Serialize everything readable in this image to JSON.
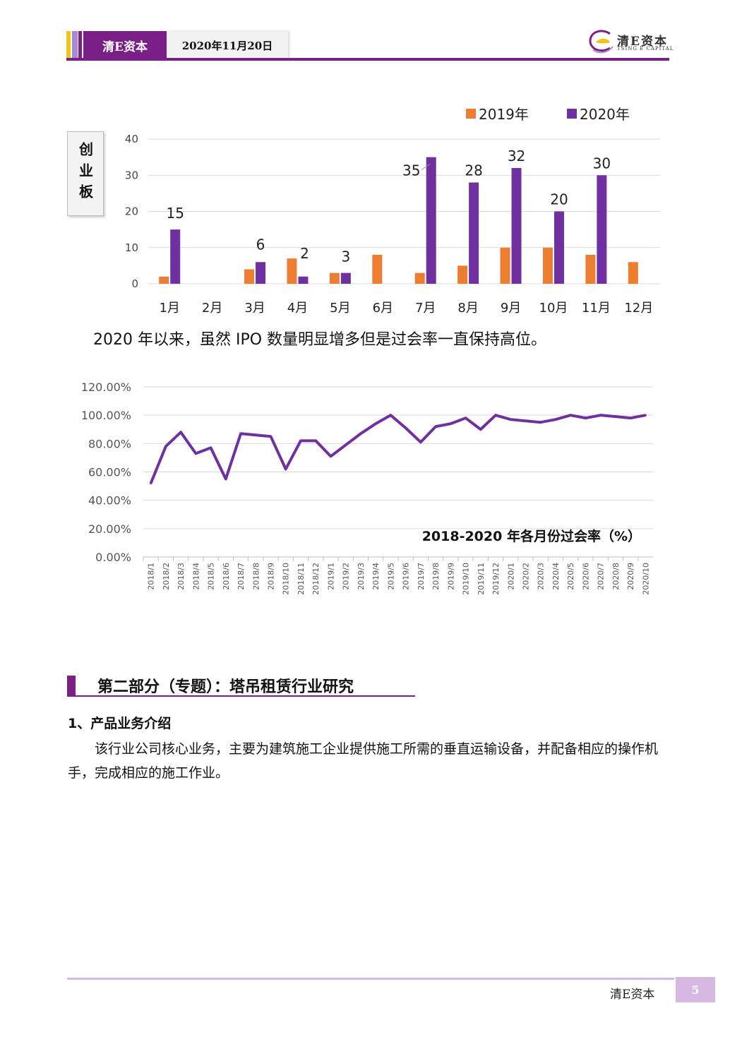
{
  "header": {
    "brand": "清E资本",
    "date": "2020年11月20日",
    "logo_text": "清E资本",
    "logo_sub": "TSING E CAPITAL",
    "colors": {
      "accent": "#7a1f86",
      "stripe_yellow": "#f0c419",
      "stripe_purple_light": "#a78bd0"
    }
  },
  "chart1_side_label": "创业板",
  "paragraph1": "2020 年以来，虽然 IPO 数量明显增多但是过会率一直保持高位。",
  "chart_data": [
    {
      "type": "bar",
      "categories": [
        "1月",
        "2月",
        "3月",
        "4月",
        "5月",
        "6月",
        "7月",
        "8月",
        "9月",
        "10月",
        "11月",
        "12月"
      ],
      "series": [
        {
          "name": "2019年",
          "color": "#ed7d31",
          "values": [
            2,
            0,
            4,
            7,
            3,
            8,
            3,
            5,
            10,
            10,
            8,
            6
          ]
        },
        {
          "name": "2020年",
          "color": "#7030a0",
          "values": [
            15,
            0,
            6,
            2,
            3,
            null,
            35,
            28,
            32,
            20,
            30,
            null
          ]
        }
      ],
      "data_labels_series": "2020年",
      "ylim": [
        0,
        40
      ],
      "yticks": [
        0,
        10,
        20,
        30,
        40
      ],
      "legend": "top-right",
      "grid": true
    },
    {
      "type": "line",
      "title": "2018-2020 年各月份过会率（%）",
      "x": [
        "2018/1",
        "2018/2",
        "2018/3",
        "2018/4",
        "2018/5",
        "2018/6",
        "2018/7",
        "2018/8",
        "2018/9",
        "2018/10",
        "2018/11",
        "2018/12",
        "2019/1",
        "2019/2",
        "2019/3",
        "2019/4",
        "2019/5",
        "2019/6",
        "2019/7",
        "2019/8",
        "2019/9",
        "2019/10",
        "2019/11",
        "2019/12",
        "2020/1",
        "2020/2",
        "2020/3",
        "2020/4",
        "2020/5",
        "2020/6",
        "2020/7",
        "2020/8",
        "2020/9",
        "2020/10"
      ],
      "series": [
        {
          "color": "#7030a0",
          "values": [
            52,
            78,
            88,
            73,
            77,
            55,
            87,
            86,
            85,
            62,
            82,
            82,
            71,
            79,
            87,
            94,
            100,
            91,
            81,
            92,
            94,
            98,
            90,
            100,
            97,
            96,
            95,
            97,
            100,
            98,
            100,
            99,
            98,
            100
          ]
        }
      ],
      "ylim": [
        0,
        120
      ],
      "yticks": [
        "0.00%",
        "20.00%",
        "40.00%",
        "60.00%",
        "80.00%",
        "100.00%",
        "120.00%"
      ],
      "grid": true
    }
  ],
  "section2": {
    "title": "第二部分（专题）：塔吊租赁行业研究",
    "subtitle": "1、产品业务介绍",
    "body": "该行业公司核心业务，主要为建筑施工企业提供施工所需的垂直运输设备，并配备相应的操作机手，完成相应的施工作业。"
  },
  "footer": {
    "brand": "清E资本",
    "page": "5"
  }
}
